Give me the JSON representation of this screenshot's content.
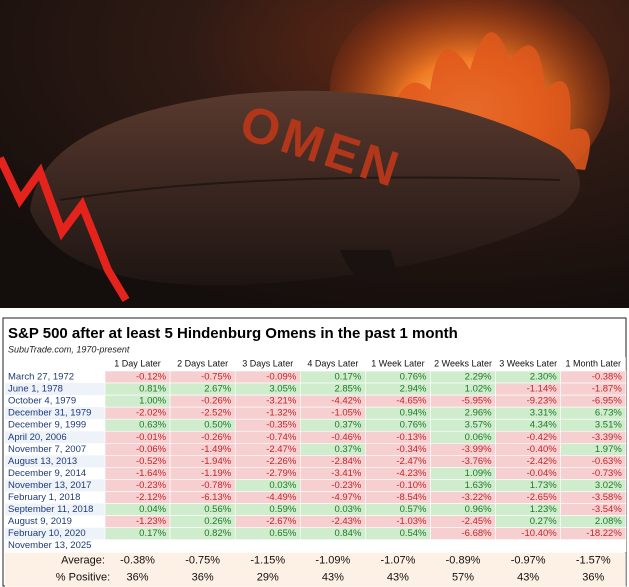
{
  "image": {
    "text": "OMEN"
  },
  "table": {
    "title": "S&P 500 after at least 5 Hindenburg Omens in the past 1 month",
    "subtitle": "SubuTrade.com, 1970-present",
    "columns": [
      "1 Day Later",
      "2 Days Later",
      "3 Days Later",
      "4 Days Later",
      "1 Week Later",
      "2 Weeks Later",
      "3 Weeks Later",
      "1 Month Later"
    ],
    "rows": [
      {
        "date": "March 27, 1972",
        "cells": [
          "-0.12%",
          "-0.75%",
          "-0.09%",
          "0.17%",
          "0.76%",
          "2.29%",
          "2.30%",
          "-0.38%"
        ]
      },
      {
        "date": "June 1, 1978",
        "cells": [
          "0.81%",
          "2.67%",
          "3.05%",
          "2.85%",
          "2.94%",
          "1.02%",
          "-1.14%",
          "-1.87%"
        ]
      },
      {
        "date": "October 4, 1979",
        "cells": [
          "1.00%",
          "-0.26%",
          "-3.21%",
          "-4.42%",
          "-4.65%",
          "-5.95%",
          "-9.23%",
          "-6.95%"
        ]
      },
      {
        "date": "December 31, 1979",
        "cells": [
          "-2.02%",
          "-2.52%",
          "-1.32%",
          "-1.05%",
          "0.94%",
          "2.96%",
          "3.31%",
          "6.73%"
        ]
      },
      {
        "date": "December 9, 1999",
        "cells": [
          "0.63%",
          "0.50%",
          "-0.35%",
          "0.37%",
          "0.76%",
          "3.57%",
          "4.34%",
          "3.51%"
        ]
      },
      {
        "date": "April 20, 2006",
        "cells": [
          "-0.01%",
          "-0.26%",
          "-0.74%",
          "-0.46%",
          "-0.13%",
          "0.06%",
          "-0.42%",
          "-3.39%"
        ]
      },
      {
        "date": "November 7, 2007",
        "cells": [
          "-0.06%",
          "-1.49%",
          "-2.47%",
          "0.37%",
          "-0.34%",
          "-3.99%",
          "-0.40%",
          "1.97%"
        ]
      },
      {
        "date": "August 13, 2013",
        "cells": [
          "-0.52%",
          "-1.94%",
          "-2.26%",
          "-2.84%",
          "-2.47%",
          "-3.76%",
          "-2.42%",
          "-0.63%"
        ]
      },
      {
        "date": "December 9, 2014",
        "cells": [
          "-1.64%",
          "-1.19%",
          "-2.79%",
          "-3.41%",
          "-4.23%",
          "1.09%",
          "-0.04%",
          "-0.73%"
        ]
      },
      {
        "date": "November 13, 2017",
        "cells": [
          "-0.23%",
          "-0.78%",
          "0.03%",
          "-0.23%",
          "-0.10%",
          "1.63%",
          "1.73%",
          "3.02%"
        ]
      },
      {
        "date": "February 1, 2018",
        "cells": [
          "-2.12%",
          "-6.13%",
          "-4.49%",
          "-4.97%",
          "-8.54%",
          "-3.22%",
          "-2.65%",
          "-3.58%"
        ]
      },
      {
        "date": "September 11, 2018",
        "cells": [
          "0.04%",
          "0.56%",
          "0.59%",
          "0.03%",
          "0.57%",
          "0.96%",
          "1.23%",
          "-3.54%"
        ]
      },
      {
        "date": "August 9, 2019",
        "cells": [
          "-1.23%",
          "0.26%",
          "-2.67%",
          "-2.43%",
          "-1.03%",
          "-2.45%",
          "0.27%",
          "2.08%"
        ]
      },
      {
        "date": "February 10, 2020",
        "cells": [
          "0.17%",
          "0.82%",
          "0.65%",
          "0.84%",
          "0.54%",
          "-6.68%",
          "-10.40%",
          "-18.22%"
        ]
      },
      {
        "date": "November 13, 2025"
      }
    ],
    "summary": [
      {
        "label": "Average:",
        "cells": [
          "-0.38%",
          "-0.75%",
          "-1.15%",
          "-1.09%",
          "-1.07%",
          "-0.89%",
          "-0.97%",
          "-1.57%"
        ]
      },
      {
        "label": "% Positive:",
        "cells": [
          "36%",
          "36%",
          "29%",
          "43%",
          "43%",
          "57%",
          "43%",
          "36%"
        ]
      }
    ]
  }
}
